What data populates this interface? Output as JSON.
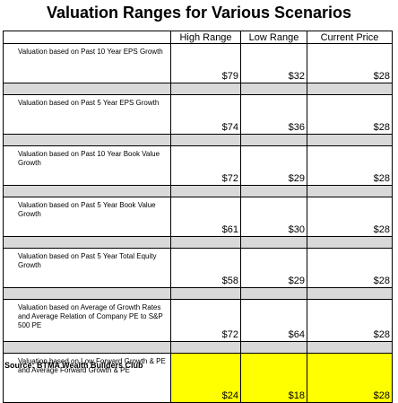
{
  "title": "Valuation Ranges for Various Scenarios",
  "headers": [
    "High Range",
    "Low Range",
    "Current Price"
  ],
  "rows": [
    {
      "label": "Valuation based on Past 10 Year EPS Growth",
      "high": "$79",
      "low": "$32",
      "current": "$28"
    },
    {
      "label": "Valuation based on Past 5 Year EPS Growth",
      "high": "$74",
      "low": "$36",
      "current": "$28"
    },
    {
      "label": "Valuation based on Past 10 Year Book Value Growth",
      "high": "$72",
      "low": "$29",
      "current": "$28"
    },
    {
      "label": "Valuation based on Past 5 Year Book Value Growth",
      "high": "$61",
      "low": "$30",
      "current": "$28"
    },
    {
      "label": "Valuation based on Past 5 Year Total Equity Growth",
      "high": "$58",
      "low": "$29",
      "current": "$28"
    },
    {
      "label": "Valuation based on Average of Growth Rates and Average Relation of Company PE to S&P 500 PE",
      "high": "$72",
      "low": "$64",
      "current": "$28"
    },
    {
      "label": "Valuation based on Low Forward Growth & PE and Average Forward Growth & PE",
      "high": "$24",
      "low": "$18",
      "current": "$28"
    }
  ],
  "colors": {
    "highlight": "#ffff00",
    "separator": "#d9d9d9"
  },
  "source": "Source: BTMA Wealth Builders Club"
}
